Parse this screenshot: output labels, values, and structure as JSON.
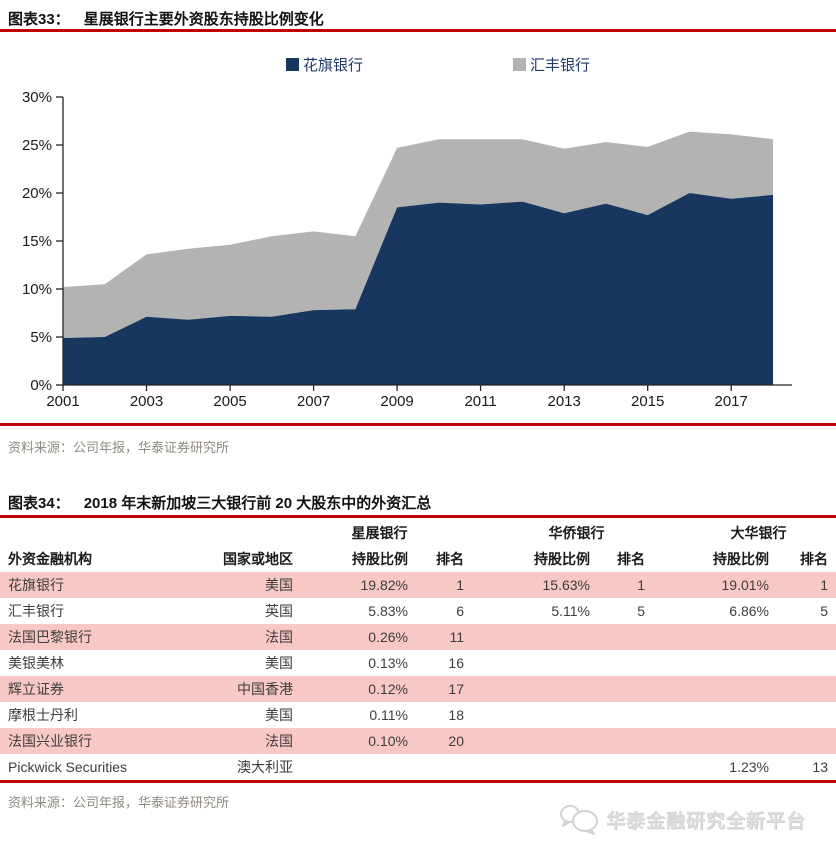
{
  "fig33": {
    "label": "图表33：",
    "title": "星展银行主要外资股东持股比例变化",
    "source": "资料来源：公司年报，华泰证券研究所"
  },
  "chart_data": {
    "type": "area",
    "stacked": true,
    "title": "星展银行主要外资股东持股比例变化",
    "x": [
      2001,
      2002,
      2003,
      2004,
      2005,
      2006,
      2007,
      2008,
      2009,
      2010,
      2011,
      2012,
      2013,
      2014,
      2015,
      2016,
      2017,
      2018
    ],
    "x_tick_labels": [
      "2001",
      "2003",
      "2005",
      "2007",
      "2009",
      "2011",
      "2013",
      "2015",
      "2017"
    ],
    "x_ticks": [
      2001,
      2003,
      2005,
      2007,
      2009,
      2011,
      2013,
      2015,
      2017
    ],
    "series": [
      {
        "name": "花旗银行",
        "color": "#17375e",
        "values": [
          4.9,
          5.0,
          7.1,
          6.8,
          7.2,
          7.1,
          7.8,
          7.9,
          18.5,
          19.0,
          18.8,
          19.1,
          17.9,
          18.9,
          17.7,
          20.0,
          19.4,
          19.8
        ]
      },
      {
        "name": "汇丰银行",
        "color": "#b3b3b3",
        "values": [
          5.3,
          5.5,
          6.5,
          7.4,
          7.4,
          8.4,
          8.2,
          7.6,
          6.2,
          6.6,
          6.8,
          6.5,
          6.7,
          6.4,
          7.1,
          6.4,
          6.7,
          5.8
        ]
      }
    ],
    "ylim": [
      0,
      30
    ],
    "y_tick_step": 5,
    "y_tick_labels": [
      "0%",
      "5%",
      "10%",
      "15%",
      "20%",
      "25%",
      "30%"
    ],
    "grid": false,
    "legend_position": "top"
  },
  "fig34": {
    "label": "图表34：",
    "title": "2018 年末新加坡三大银行前 20 大股东中的外资汇总",
    "source": "资料来源：公司年报，华泰证券研究所",
    "table": {
      "group_headers": [
        "星展银行",
        "华侨银行",
        "大华银行"
      ],
      "col_headers": [
        "外资金融机构",
        "国家或地区",
        "持股比例",
        "排名",
        "持股比例",
        "排名",
        "持股比例",
        "排名"
      ],
      "rows": [
        [
          "花旗银行",
          "美国",
          "19.82%",
          "1",
          "15.63%",
          "1",
          "19.01%",
          "1"
        ],
        [
          "汇丰银行",
          "英国",
          "5.83%",
          "6",
          "5.11%",
          "5",
          "6.86%",
          "5"
        ],
        [
          "法国巴黎银行",
          "法国",
          "0.26%",
          "11",
          "",
          "",
          "",
          ""
        ],
        [
          "美银美林",
          "美国",
          "0.13%",
          "16",
          "",
          "",
          "",
          ""
        ],
        [
          "辉立证券",
          "中国香港",
          "0.12%",
          "17",
          "",
          "",
          "",
          ""
        ],
        [
          "摩根士丹利",
          "美国",
          "0.11%",
          "18",
          "",
          "",
          "",
          ""
        ],
        [
          "法国兴业银行",
          "法国",
          "0.10%",
          "20",
          "",
          "",
          "",
          ""
        ],
        [
          "Pickwick Securities",
          "澳大利亚",
          "",
          "",
          "",
          "",
          "1.23%",
          "13"
        ]
      ]
    }
  },
  "watermark": {
    "text": "华泰金融研究全新平台"
  },
  "colors": {
    "accent_red": "#c00000",
    "series_citibank_navy": "#17375e",
    "series_hsbc_gray": "#b3b3b3",
    "table_row_pink": "#f8c8c6",
    "source_text_gray": "#8f8a80",
    "watermark_gray": "#dcdcdc"
  }
}
